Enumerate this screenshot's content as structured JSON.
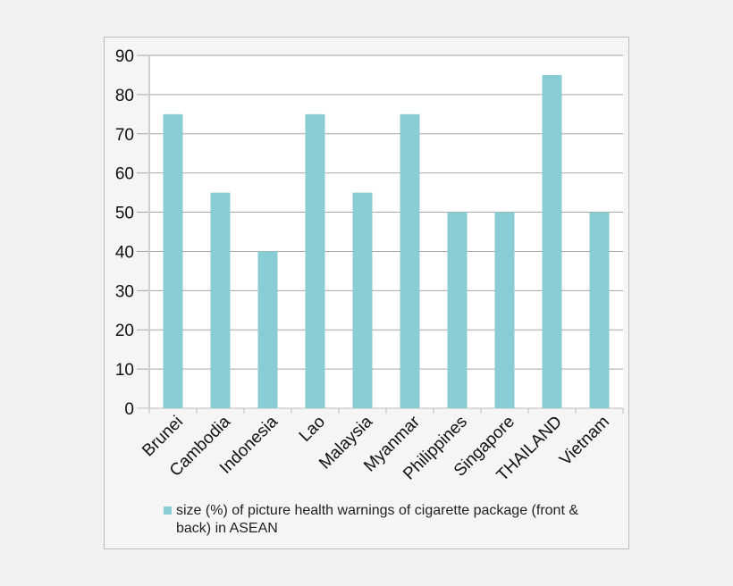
{
  "chart_data": {
    "type": "bar",
    "title": "",
    "xlabel": "",
    "ylabel": "",
    "categories": [
      "Brunei",
      "Cambodia",
      "Indonesia",
      "Lao",
      "Malaysia",
      "Myanmar",
      "Philippines",
      "Singapore",
      "THAILAND",
      "Vietnam"
    ],
    "series": [
      {
        "name": "size (%) of picture health warnings of cigarette package (front & back) in ASEAN",
        "values": [
          75,
          55,
          40,
          75,
          55,
          75,
          50,
          50,
          85,
          50
        ]
      }
    ],
    "ylim": [
      0,
      90
    ],
    "yticks": [
      0,
      10,
      20,
      30,
      40,
      50,
      60,
      70,
      80,
      90
    ],
    "grid": true,
    "legend_position": "bottom",
    "bar_color": "#88cdd3"
  }
}
